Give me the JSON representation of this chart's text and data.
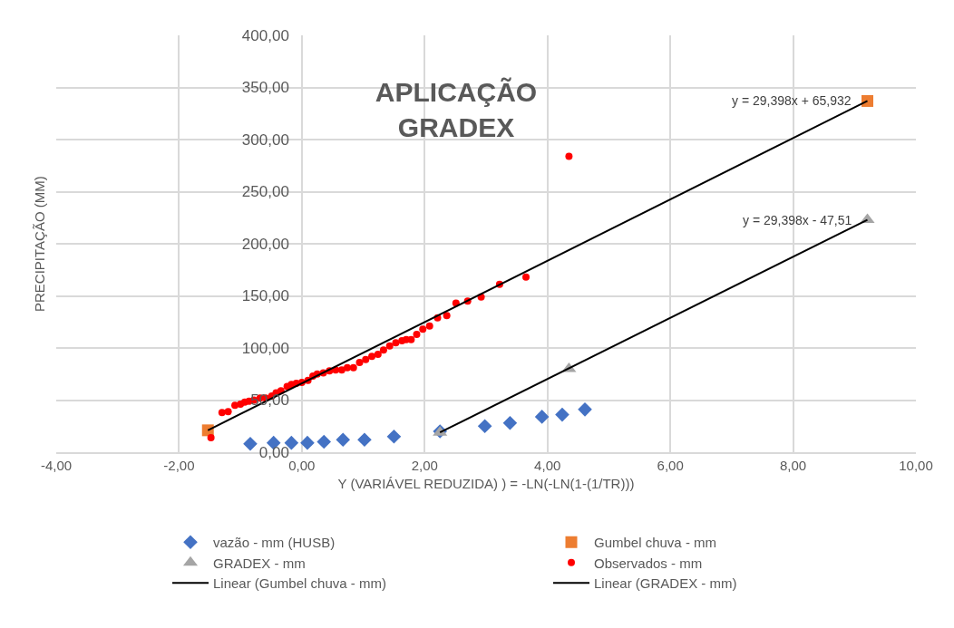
{
  "chart_data": {
    "type": "scatter",
    "title": "APLICAÇÃO\nGRADEX",
    "xlabel": "Y (VARIÁVEL REDUZIDA) ) = -LN(-LN(1-(1/TR)))",
    "ylabel": "PRECIPITAÇÃO (MM)",
    "xlim": [
      -4,
      10
    ],
    "ylim": [
      0,
      400
    ],
    "xticks": [
      {
        "value": -4,
        "label": "-4,00"
      },
      {
        "value": -2,
        "label": "-2,00"
      },
      {
        "value": 0,
        "label": "0,00"
      },
      {
        "value": 2,
        "label": "2,00"
      },
      {
        "value": 4,
        "label": "4,00"
      },
      {
        "value": 6,
        "label": "6,00"
      },
      {
        "value": 8,
        "label": "8,00"
      },
      {
        "value": 10,
        "label": "10,00"
      }
    ],
    "yticks": [
      {
        "value": 0,
        "label": "0,00"
      },
      {
        "value": 50,
        "label": "50,00"
      },
      {
        "value": 100,
        "label": "100,00"
      },
      {
        "value": 150,
        "label": "150,00"
      },
      {
        "value": 200,
        "label": "200,00"
      },
      {
        "value": 250,
        "label": "250,00"
      },
      {
        "value": 300,
        "label": "300,00"
      },
      {
        "value": 350,
        "label": "350,00"
      },
      {
        "value": 400,
        "label": "400,00"
      }
    ],
    "grid": true,
    "legend": "bottom",
    "annotations": [
      {
        "text": "y = 29,398x + 65,932",
        "x": 9.21,
        "y": 337
      },
      {
        "text": "y = 29,398x - 47,51",
        "x": 9.21,
        "y": 223
      }
    ],
    "series": [
      {
        "name": "vazão - mm (HUSB)",
        "marker": "diamond",
        "color": "#4472c4",
        "x": [
          -0.84,
          -0.46,
          -0.17,
          0.09,
          0.36,
          0.67,
          1.02,
          1.5,
          2.25,
          2.98,
          3.39,
          3.91,
          4.24,
          4.61
        ],
        "values": [
          8,
          9,
          9,
          9,
          10,
          12,
          12,
          15,
          20,
          25,
          28,
          34,
          36,
          41
        ]
      },
      {
        "name": "Gumbel chuva - mm",
        "marker": "square",
        "color": "#ed7d31",
        "x": [
          -1.53,
          9.21
        ],
        "values": [
          21,
          337
        ]
      },
      {
        "name": "GRADEX - mm",
        "marker": "triangle",
        "color": "#a5a5a5",
        "x": [
          2.25,
          4.35,
          9.21
        ],
        "values": [
          19,
          80,
          223
        ]
      },
      {
        "name": "Observados - mm",
        "marker": "circle",
        "color": "#ff0000",
        "x": [
          -1.48,
          -1.3,
          -1.2,
          -1.09,
          -1.0,
          -0.93,
          -0.86,
          -0.78,
          -0.68,
          -0.59,
          -0.49,
          -0.42,
          -0.34,
          -0.24,
          -0.17,
          -0.09,
          0.0,
          0.1,
          0.18,
          0.25,
          0.35,
          0.45,
          0.55,
          0.65,
          0.74,
          0.84,
          0.94,
          1.04,
          1.14,
          1.24,
          1.33,
          1.43,
          1.53,
          1.63,
          1.7,
          1.78,
          1.87,
          1.97,
          2.08,
          2.21,
          2.36,
          2.51,
          2.7,
          2.92,
          3.22,
          3.65,
          4.35
        ],
        "values": [
          14,
          38,
          39,
          45,
          46,
          48,
          49,
          50,
          52,
          52,
          54,
          57,
          59,
          63,
          65,
          66,
          67,
          69,
          73,
          75,
          76,
          78,
          79,
          79,
          81,
          81,
          86,
          89,
          92,
          94,
          98,
          102,
          105,
          107,
          108,
          108,
          113,
          118,
          121,
          129,
          131,
          143,
          145,
          149,
          161,
          168,
          284
        ]
      },
      {
        "name": "Linear (Gumbel chuva - mm)",
        "type": "line",
        "marker": "none",
        "color": "#000000",
        "x": [
          -1.53,
          9.21
        ],
        "values": [
          21,
          337
        ]
      },
      {
        "name": "Linear (GRADEX - mm)",
        "type": "line",
        "marker": "none",
        "color": "#000000",
        "x": [
          2.25,
          9.21
        ],
        "values": [
          19,
          223
        ]
      }
    ]
  }
}
